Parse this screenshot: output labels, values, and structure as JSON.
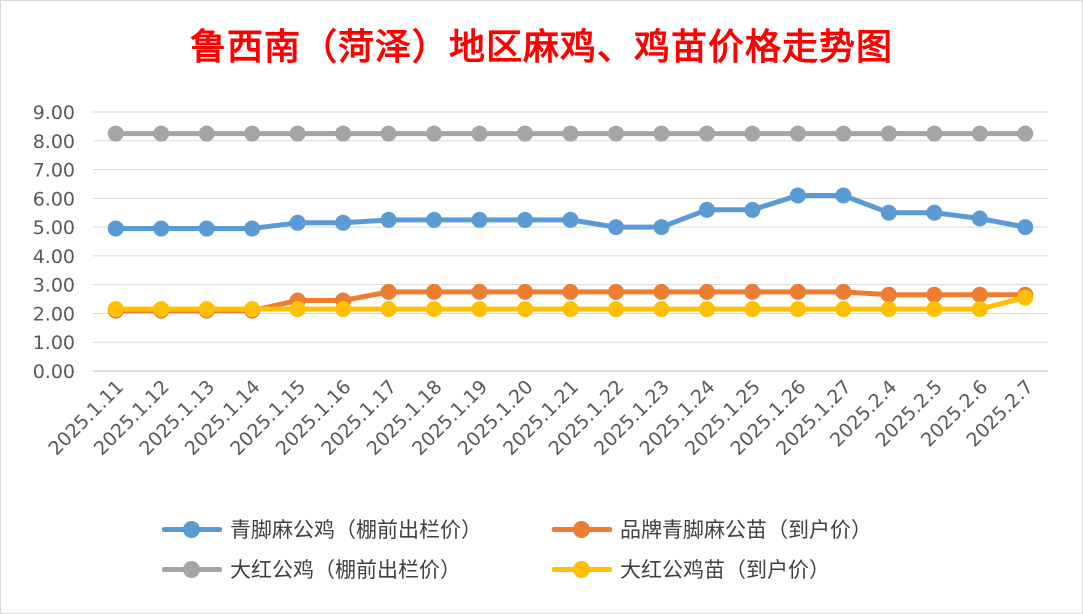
{
  "chart_data": {
    "type": "line",
    "title": "鲁西南（菏泽）地区麻鸡、鸡苗价格走势图",
    "xlabel": "",
    "ylabel": "",
    "ylim": [
      0,
      9
    ],
    "y_ticks": [
      "0.00",
      "1.00",
      "2.00",
      "3.00",
      "4.00",
      "5.00",
      "6.00",
      "7.00",
      "8.00",
      "9.00"
    ],
    "grid": true,
    "legend_position": "bottom",
    "categories": [
      "2025.1.11",
      "2025.1.12",
      "2025.1.13",
      "2025.1.14",
      "2025.1.15",
      "2025.1.16",
      "2025.1.17",
      "2025.1.18",
      "2025.1.19",
      "2025.1.20",
      "2025.1.21",
      "2025.1.22",
      "2025.1.23",
      "2025.1.24",
      "2025.1.25",
      "2025.1.26",
      "2025.1.27",
      "2025.2.4",
      "2025.2.5",
      "2025.2.6",
      "2025.2.7"
    ],
    "series": [
      {
        "name": "青脚麻公鸡（棚前出栏价）",
        "color": "#5b9bd5",
        "values": [
          4.95,
          4.95,
          4.95,
          4.95,
          5.15,
          5.15,
          5.25,
          5.25,
          5.25,
          5.25,
          5.25,
          5.0,
          5.0,
          5.6,
          5.6,
          6.1,
          6.1,
          5.5,
          5.5,
          5.3,
          5.0
        ]
      },
      {
        "name": "品牌青脚麻公苗（到户价）",
        "color": "#ed7d31",
        "values": [
          2.1,
          2.1,
          2.1,
          2.1,
          2.45,
          2.45,
          2.75,
          2.75,
          2.75,
          2.75,
          2.75,
          2.75,
          2.75,
          2.75,
          2.75,
          2.75,
          2.75,
          2.65,
          2.65,
          2.65,
          2.65
        ]
      },
      {
        "name": "大红公鸡（棚前出栏价）",
        "color": "#a5a5a5",
        "values": [
          8.25,
          8.25,
          8.25,
          8.25,
          8.25,
          8.25,
          8.25,
          8.25,
          8.25,
          8.25,
          8.25,
          8.25,
          8.25,
          8.25,
          8.25,
          8.25,
          8.25,
          8.25,
          8.25,
          8.25,
          8.25
        ]
      },
      {
        "name": "大红公鸡苗（到户价）",
        "color": "#ffc000",
        "values": [
          2.15,
          2.15,
          2.15,
          2.15,
          2.15,
          2.15,
          2.15,
          2.15,
          2.15,
          2.15,
          2.15,
          2.15,
          2.15,
          2.15,
          2.15,
          2.15,
          2.15,
          2.15,
          2.15,
          2.15,
          2.55
        ]
      }
    ],
    "draw_order": [
      0,
      1,
      2,
      3
    ]
  }
}
